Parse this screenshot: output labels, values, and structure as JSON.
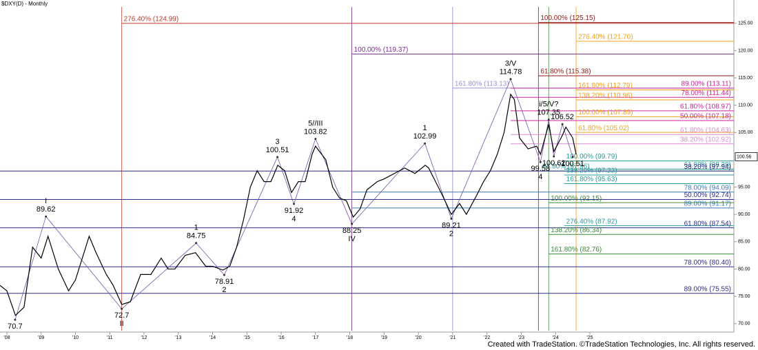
{
  "chart_data": {
    "type": "line",
    "title": "$DXY(D) - Monthly",
    "footer": "Created with TradeStation. ©TradeStation Technologies, Inc. All rights reserved.",
    "xlim": [
      2007.8,
      2029.2
    ],
    "ylim": [
      68.7,
      128
    ],
    "xticks": [
      {
        "value": 2008,
        "label": "'08"
      },
      {
        "value": 2009,
        "label": "'09"
      },
      {
        "value": 2010,
        "label": "'10"
      },
      {
        "value": 2011,
        "label": "'11"
      },
      {
        "value": 2012,
        "label": "'12"
      },
      {
        "value": 2013,
        "label": "'13"
      },
      {
        "value": 2014,
        "label": "'14"
      },
      {
        "value": 2015,
        "label": "'15"
      },
      {
        "value": 2016,
        "label": "'16"
      },
      {
        "value": 2017,
        "label": "'17"
      },
      {
        "value": 2018,
        "label": "'18"
      },
      {
        "value": 2019,
        "label": "'19"
      },
      {
        "value": 2020,
        "label": "'20"
      },
      {
        "value": 2021,
        "label": "'21"
      },
      {
        "value": 2022,
        "label": "'22"
      },
      {
        "value": 2023,
        "label": "'23"
      },
      {
        "value": 2024,
        "label": "'24"
      },
      {
        "value": 2025,
        "label": "'25"
      }
    ],
    "yticks": [
      {
        "value": 70,
        "label": "70.00"
      },
      {
        "value": 75,
        "label": "75.00"
      },
      {
        "value": 80,
        "label": "80.00"
      },
      {
        "value": 85,
        "label": "85.00"
      },
      {
        "value": 90,
        "label": "90.00"
      },
      {
        "value": 95,
        "label": "95.00"
      },
      {
        "value": 100,
        "label": "100.00"
      },
      {
        "value": 105,
        "label": "105.00"
      },
      {
        "value": 110,
        "label": "110.00"
      },
      {
        "value": 115,
        "label": "115.00"
      },
      {
        "value": 120,
        "label": "120.00"
      },
      {
        "value": 125,
        "label": "125.00"
      }
    ],
    "last_price": 100.56,
    "series": [
      {
        "name": "$DXY",
        "color": "#000000",
        "x": [
          2007.8,
          2008.0,
          2008.25,
          2008.5,
          2008.75,
          2009.0,
          2009.2,
          2009.5,
          2009.8,
          2010.0,
          2010.4,
          2010.6,
          2010.9,
          2011.1,
          2011.35,
          2011.6,
          2011.9,
          2012.2,
          2012.5,
          2012.7,
          2012.9,
          2013.2,
          2013.5,
          2013.8,
          2014.0,
          2014.3,
          2014.5,
          2014.7,
          2014.9,
          2015.1,
          2015.3,
          2015.5,
          2015.7,
          2015.9,
          2016.1,
          2016.3,
          2016.5,
          2016.7,
          2016.9,
          2017.0,
          2017.3,
          2017.5,
          2017.7,
          2017.9,
          2018.1,
          2018.3,
          2018.5,
          2018.8,
          2019.0,
          2019.3,
          2019.6,
          2019.9,
          2020.2,
          2020.3,
          2020.5,
          2020.7,
          2020.96,
          2021.2,
          2021.4,
          2021.7,
          2021.9,
          2022.1,
          2022.3,
          2022.5,
          2022.69,
          2022.8,
          2022.95,
          2023.2,
          2023.45,
          2023.56,
          2023.8,
          2023.95,
          2024.2,
          2024.3,
          2024.5,
          2024.6
        ],
        "values": [
          77,
          76,
          71.5,
          73,
          84,
          82,
          86,
          80,
          76,
          78,
          86,
          83,
          79,
          77,
          73.5,
          74,
          79,
          79,
          82,
          80,
          80,
          82.5,
          83,
          80.5,
          80.5,
          79.8,
          80.5,
          84,
          89,
          95,
          98,
          96,
          96,
          99,
          98,
          94,
          96,
          96,
          101,
          102.5,
          100,
          95,
          93,
          92.5,
          89.5,
          91,
          94.5,
          96,
          96.5,
          97.5,
          98.5,
          97.5,
          99,
          98.5,
          96,
          93.5,
          90,
          92,
          90,
          93.5,
          96,
          98,
          101,
          105,
          112,
          111,
          104,
          102,
          102.5,
          101,
          106.5,
          101.5,
          104.5,
          106,
          104,
          101
        ]
      }
    ],
    "zigzag_color": "#7b4fa8",
    "waves": [
      {
        "x": 2008.24,
        "price": 70.7,
        "side": "below"
      },
      {
        "x": 2009.14,
        "price": 89.62,
        "label": "I",
        "side": "above"
      },
      {
        "x": 2011.35,
        "price": 72.7,
        "label": "II",
        "side": "below"
      },
      {
        "x": 2013.52,
        "price": 84.75,
        "label": "1",
        "side": "above"
      },
      {
        "x": 2014.34,
        "price": 78.91,
        "label": "2",
        "side": "below"
      },
      {
        "x": 2015.89,
        "price": 100.51,
        "label": "3",
        "side": "above"
      },
      {
        "x": 2016.37,
        "price": 91.92,
        "label": "4",
        "side": "below"
      },
      {
        "x": 2017.0,
        "price": 103.82,
        "label": "5//III",
        "side": "above"
      },
      {
        "x": 2018.06,
        "price": 88.25,
        "label": "IV",
        "side": "below"
      },
      {
        "x": 2020.19,
        "price": 102.99,
        "label": "1",
        "side": "above"
      },
      {
        "x": 2020.96,
        "price": 89.21,
        "label": "2",
        "side": "below"
      },
      {
        "x": 2022.69,
        "price": 114.78,
        "label": "3/V",
        "side": "above"
      },
      {
        "x": 2023.56,
        "price": 99.58,
        "label": "4",
        "side": "below"
      },
      {
        "x": 2023.8,
        "price": 107.35,
        "label": "i/5/V?",
        "side": "above"
      },
      {
        "x": 2023.95,
        "price": 100.62,
        "side": "below"
      },
      {
        "x": 2024.2,
        "price": 106.52,
        "side": "above"
      },
      {
        "x": 2024.5,
        "price": 100.51,
        "side": "below"
      }
    ],
    "vlines": [
      {
        "x": 2011.35,
        "color": "#c0392b"
      },
      {
        "x": 2018.06,
        "color": "#7b2d8e"
      },
      {
        "x": 2021.0,
        "color": "#8e7cc3"
      },
      {
        "x": 2023.5,
        "color": "#8b1a1a"
      },
      {
        "x": 2023.8,
        "color": "#3a8a3a"
      },
      {
        "x": 2024.6,
        "color": "#f0a020"
      }
    ],
    "levels": [
      {
        "value": 124.99,
        "label": "276.40% (124.99)",
        "color": "#c0392b",
        "from": 2011.35,
        "side": "left"
      },
      {
        "value": 125.15,
        "label": "100.00% (125.15)",
        "color": "#8b1a1a",
        "from": 2023.5,
        "side": "left"
      },
      {
        "value": 121.7,
        "label": "276.40% (121.70)",
        "color": "#f0a020",
        "from": 2024.6,
        "side": "left"
      },
      {
        "value": 119.37,
        "label": "100.00% (119.37)",
        "color": "#7b2d8e",
        "from": 2018.06,
        "side": "left"
      },
      {
        "value": 115.38,
        "label": "61.80% (115.38)",
        "color": "#8b1a1a",
        "from": 2023.5,
        "side": "left"
      },
      {
        "value": 113.13,
        "label": "161.80% (113.13)",
        "color": "#9b8fd6",
        "from": 2021.0,
        "side": "left"
      },
      {
        "value": 113.11,
        "label": "89.00% (113.11)",
        "color": "#cc2299",
        "from": 2022.69,
        "side": "right"
      },
      {
        "value": 112.79,
        "label": "161.80% (112.79)",
        "color": "#f0a020",
        "from": 2024.6,
        "side": "left"
      },
      {
        "value": 111.44,
        "label": "78.00% (111.44)",
        "color": "#cc2299",
        "from": 2022.69,
        "side": "right"
      },
      {
        "value": 110.96,
        "label": "138.20% (110.96)",
        "color": "#f0a020",
        "from": 2024.6,
        "side": "left"
      },
      {
        "value": 108.97,
        "label": "61.80% (108.97)",
        "color": "#cc2299",
        "from": 2022.69,
        "side": "right"
      },
      {
        "value": 107.89,
        "label": "100.00% (107.89)",
        "color": "#f0a020",
        "from": 2024.6,
        "side": "left"
      },
      {
        "value": 107.18,
        "label": "50.00% (107.18)",
        "color": "#cc2299",
        "from": 2022.69,
        "side": "right"
      },
      {
        "value": 105.02,
        "label": "61.80% (105.02)",
        "color": "#f0a020",
        "from": 2024.6,
        "side": "left"
      },
      {
        "value": 104.63,
        "label": "61.80% (104.63)",
        "color": "#d98bd0",
        "from": 2022.69,
        "side": "right"
      },
      {
        "value": 102.92,
        "label": "38.20% (102.92)",
        "color": "#d98bd0",
        "from": 2022.69,
        "side": "right"
      },
      {
        "value": 99.79,
        "label": "100.00% (99.79)",
        "color": "#2a9a9a",
        "from": 2024.25,
        "side": "left"
      },
      {
        "value": 98.28,
        "label": "61.80% (98.28)",
        "color": "#2a9a9a",
        "from": 2024.25,
        "side": "right"
      },
      {
        "value": 97.96,
        "label": "61.80% (97.96)",
        "color": "#2a9a9a",
        "from": 2023.56,
        "side": "left"
      },
      {
        "value": 97.94,
        "label": "38.20% (97.94)",
        "color": "#2c2c8c",
        "from": 2007.8,
        "side": "right"
      },
      {
        "value": 97.22,
        "label": "138.20% (97.22)",
        "color": "#2a9a9a",
        "from": 2024.25,
        "side": "left"
      },
      {
        "value": 95.63,
        "label": "161.80% (95.63)",
        "color": "#2a9a9a",
        "from": 2024.25,
        "side": "left"
      },
      {
        "value": 94.09,
        "label": "78.00% (94.09)",
        "color": "#3a7ab8",
        "from": 2018.06,
        "side": "right"
      },
      {
        "value": 92.74,
        "label": "50.00% (92.74)",
        "color": "#2c2c8c",
        "from": 2007.8,
        "side": "right"
      },
      {
        "value": 92.15,
        "label": "100.00% (92.15)",
        "color": "#3a8a3a",
        "from": 2023.8,
        "side": "left"
      },
      {
        "value": 91.17,
        "label": "89.00% (91.17)",
        "color": "#3a7ab8",
        "from": 2018.06,
        "side": "right"
      },
      {
        "value": 87.92,
        "label": "276.40% (87.92)",
        "color": "#2a9a9a",
        "from": 2024.25,
        "side": "left"
      },
      {
        "value": 87.54,
        "label": "61.80% (87.54)",
        "color": "#2c2c8c",
        "from": 2007.8,
        "side": "right"
      },
      {
        "value": 86.34,
        "label": "138.20% (86.34)",
        "color": "#3a8a3a",
        "from": 2023.8,
        "side": "left"
      },
      {
        "value": 82.76,
        "label": "161.80% (82.76)",
        "color": "#3a8a3a",
        "from": 2023.8,
        "side": "left"
      },
      {
        "value": 80.4,
        "label": "78.00% (80.40)",
        "color": "#2c2c8c",
        "from": 2007.8,
        "side": "right"
      },
      {
        "value": 75.55,
        "label": "89.00% (75.55)",
        "color": "#2c2c8c",
        "from": 2007.8,
        "side": "right"
      }
    ]
  }
}
